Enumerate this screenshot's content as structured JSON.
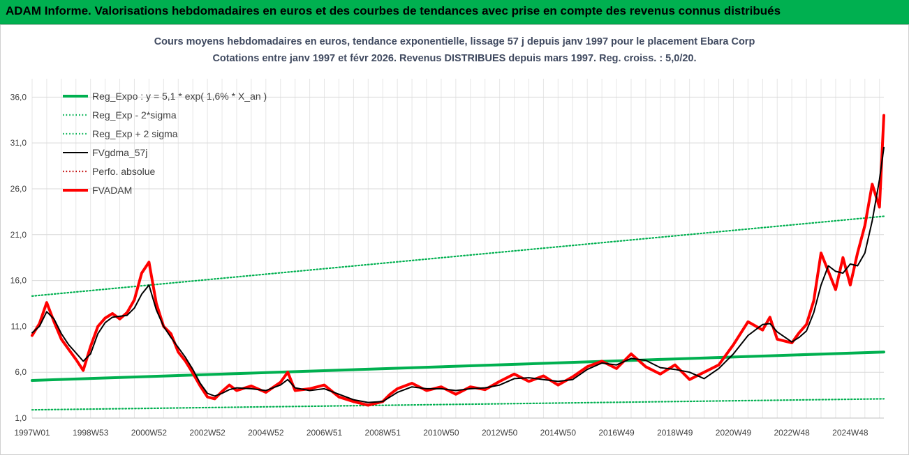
{
  "header": {
    "title": "ADAM Informe. Valorisations hebdomadaires en euros et des courbes de tendances avec prise en compte des revenus connus distribués"
  },
  "colors": {
    "banner": "#00b050",
    "reg_expo": "#00b050",
    "sigma": "#00b050",
    "fvgdma": "#000000",
    "fvadam": "#ff0000",
    "perfo": "#c00000"
  },
  "chart_data": {
    "type": "line",
    "title": "Cours moyens hebdomadaires en euros, tendance exponentielle, lissage 57 j depuis janv 1997  pour le placement Ebara Corp",
    "subtitle": "Cotations entre janv 1997 et févr 2026. Revenus DISTRIBUES depuis mars 1997. Reg. croiss. : 5,0/20.",
    "xlabel": "",
    "ylabel": "",
    "xlim": [
      1997.0,
      2026.15
    ],
    "ylim": [
      1.0,
      38.0
    ],
    "grid": true,
    "legend_position": "top-left",
    "y_ticks": [
      "1,0",
      "6,0",
      "11,0",
      "16,0",
      "21,0",
      "26,0",
      "31,0",
      "36,0"
    ],
    "x_ticks": [
      {
        "label": "1997W01",
        "x": 1997.0
      },
      {
        "label": "1998W53",
        "x": 1999.0
      },
      {
        "label": "2000W52",
        "x": 2001.0
      },
      {
        "label": "2002W52",
        "x": 2003.0
      },
      {
        "label": "2004W52",
        "x": 2005.0
      },
      {
        "label": "2006W51",
        "x": 2007.0
      },
      {
        "label": "2008W51",
        "x": 2009.0
      },
      {
        "label": "2010W50",
        "x": 2011.0
      },
      {
        "label": "2012W50",
        "x": 2013.0
      },
      {
        "label": "2014W50",
        "x": 2015.0
      },
      {
        "label": "2016W49",
        "x": 2017.0
      },
      {
        "label": "2018W49",
        "x": 2019.0
      },
      {
        "label": "2020W49",
        "x": 2021.0
      },
      {
        "label": "2022W48",
        "x": 2023.0
      },
      {
        "label": "2024W48",
        "x": 2025.0
      }
    ],
    "series": [
      {
        "name": "Reg_Expo : y = 5,1 * exp( 1,6% *  X_an )",
        "style": "solid-thick",
        "color": "#00b050",
        "x": [
          1997.0,
          2026.15
        ],
        "y": [
          5.1,
          8.2
        ]
      },
      {
        "name": "Reg_Exp - 2*sigma",
        "style": "dotted",
        "color": "#00b050",
        "x": [
          1997.0,
          2026.15
        ],
        "y": [
          1.9,
          3.1
        ]
      },
      {
        "name": "Reg_Exp + 2 sigma",
        "style": "dotted",
        "color": "#00b050",
        "x": [
          1997.0,
          2026.15
        ],
        "y": [
          14.3,
          23.0
        ]
      },
      {
        "name": "FVgdma_57j",
        "style": "solid",
        "color": "#000000",
        "x": [
          1997.0,
          1997.25,
          1997.5,
          1997.75,
          1998.0,
          1998.25,
          1998.5,
          1998.75,
          1999.0,
          1999.25,
          1999.5,
          1999.75,
          2000.0,
          2000.25,
          2000.5,
          2000.75,
          2001.0,
          2001.25,
          2001.5,
          2001.75,
          2002.0,
          2002.25,
          2002.5,
          2002.75,
          2003.0,
          2003.25,
          2003.5,
          2003.75,
          2004.0,
          2004.5,
          2005.0,
          2005.5,
          2005.75,
          2006.0,
          2006.5,
          2007.0,
          2007.5,
          2008.0,
          2008.5,
          2009.0,
          2009.25,
          2009.5,
          2010.0,
          2010.5,
          2011.0,
          2011.5,
          2012.0,
          2012.5,
          2013.0,
          2013.5,
          2014.0,
          2014.5,
          2015.0,
          2015.5,
          2016.0,
          2016.5,
          2017.0,
          2017.5,
          2018.0,
          2018.5,
          2019.0,
          2019.5,
          2020.0,
          2020.5,
          2021.0,
          2021.5,
          2022.0,
          2022.25,
          2022.5,
          2023.0,
          2023.25,
          2023.5,
          2023.75,
          2024.0,
          2024.25,
          2024.5,
          2024.75,
          2025.0,
          2025.25,
          2025.5,
          2025.75,
          2026.0,
          2026.15
        ],
        "y": [
          10.3,
          11.0,
          12.6,
          11.8,
          10.2,
          9.0,
          8.1,
          7.2,
          8.0,
          10.2,
          11.4,
          12.0,
          12.1,
          12.2,
          13.0,
          14.5,
          15.5,
          12.8,
          11.0,
          9.8,
          8.7,
          7.6,
          6.3,
          4.8,
          3.7,
          3.4,
          3.7,
          4.1,
          4.3,
          4.2,
          4.0,
          4.6,
          5.2,
          4.3,
          4.0,
          4.2,
          3.6,
          3.0,
          2.7,
          2.8,
          3.3,
          3.8,
          4.4,
          4.2,
          4.2,
          4.0,
          4.2,
          4.3,
          4.6,
          5.3,
          5.4,
          5.2,
          5.0,
          5.2,
          6.3,
          7.0,
          6.8,
          7.5,
          7.3,
          6.5,
          6.3,
          6.0,
          5.3,
          6.4,
          8.0,
          10.0,
          11.2,
          11.3,
          10.4,
          9.3,
          9.8,
          10.5,
          12.5,
          15.5,
          17.6,
          17.0,
          16.8,
          17.8,
          17.6,
          19.0,
          22.5,
          27.0,
          30.5
        ]
      },
      {
        "name": "Perfo. absolue",
        "style": "dotted",
        "color": "#c00000",
        "x": [],
        "y": []
      },
      {
        "name": "FVADAM",
        "style": "solid-thick",
        "color": "#ff0000",
        "x": [
          1997.0,
          1997.25,
          1997.5,
          1997.75,
          1998.0,
          1998.25,
          1998.5,
          1998.75,
          1999.0,
          1999.25,
          1999.5,
          1999.75,
          2000.0,
          2000.25,
          2000.5,
          2000.75,
          2001.0,
          2001.25,
          2001.5,
          2001.75,
          2002.0,
          2002.25,
          2002.5,
          2002.75,
          2003.0,
          2003.25,
          2003.5,
          2003.75,
          2004.0,
          2004.5,
          2005.0,
          2005.5,
          2005.75,
          2006.0,
          2006.5,
          2007.0,
          2007.5,
          2008.0,
          2008.5,
          2009.0,
          2009.25,
          2009.5,
          2010.0,
          2010.5,
          2011.0,
          2011.5,
          2012.0,
          2012.5,
          2013.0,
          2013.5,
          2014.0,
          2014.5,
          2015.0,
          2015.5,
          2016.0,
          2016.5,
          2017.0,
          2017.5,
          2018.0,
          2018.5,
          2019.0,
          2019.5,
          2020.0,
          2020.5,
          2021.0,
          2021.5,
          2022.0,
          2022.25,
          2022.5,
          2023.0,
          2023.25,
          2023.5,
          2023.75,
          2024.0,
          2024.25,
          2024.5,
          2024.75,
          2025.0,
          2025.25,
          2025.5,
          2025.75,
          2026.0,
          2026.15
        ],
        "y": [
          10.0,
          11.3,
          13.6,
          11.5,
          9.6,
          8.5,
          7.4,
          6.2,
          8.8,
          11.0,
          11.9,
          12.4,
          11.8,
          12.5,
          13.9,
          16.8,
          18.0,
          13.5,
          11.0,
          10.2,
          8.2,
          7.2,
          5.9,
          4.5,
          3.3,
          3.1,
          3.9,
          4.6,
          4.0,
          4.5,
          3.8,
          4.9,
          6.0,
          4.0,
          4.2,
          4.6,
          3.3,
          2.8,
          2.4,
          2.8,
          3.6,
          4.2,
          4.8,
          4.0,
          4.4,
          3.6,
          4.4,
          4.1,
          5.0,
          5.8,
          5.0,
          5.6,
          4.6,
          5.5,
          6.6,
          7.2,
          6.4,
          8.0,
          6.6,
          5.8,
          6.8,
          5.2,
          6.0,
          6.8,
          9.0,
          11.5,
          10.6,
          12.0,
          9.6,
          9.2,
          10.3,
          11.2,
          13.8,
          19.0,
          17.0,
          15.0,
          18.5,
          15.5,
          19.0,
          22.0,
          26.5,
          24.0,
          34.0
        ]
      }
    ]
  }
}
